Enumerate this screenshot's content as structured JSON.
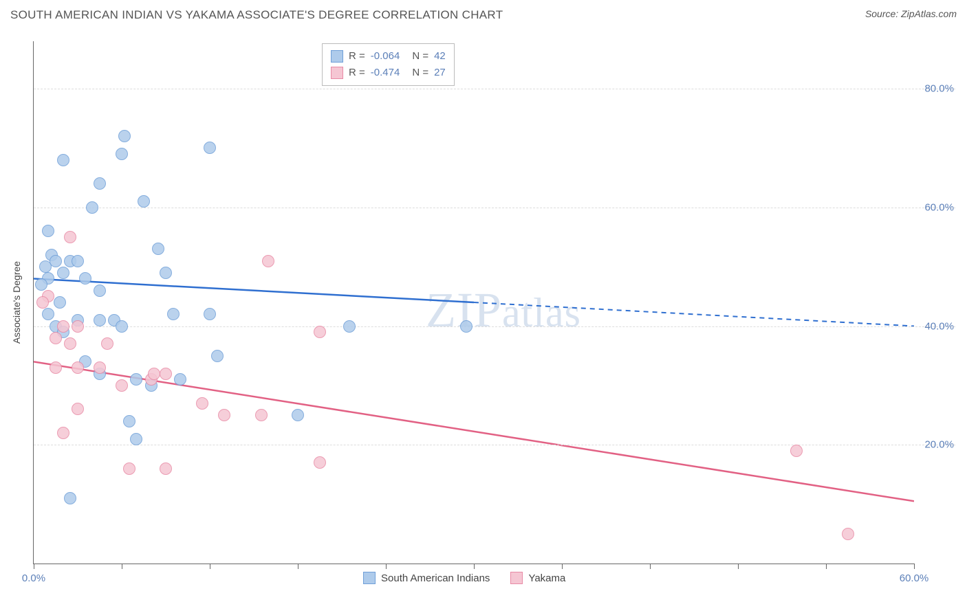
{
  "header": {
    "title": "SOUTH AMERICAN INDIAN VS YAKAMA ASSOCIATE'S DEGREE CORRELATION CHART",
    "source": "Source: ZipAtlas.com"
  },
  "chart": {
    "type": "scatter",
    "ylabel": "Associate's Degree",
    "watermark": "ZIPatlas",
    "background_color": "#ffffff",
    "grid_color": "#dcdcdc",
    "axis_color": "#666666",
    "label_color": "#5b7fb8",
    "text_color": "#555555",
    "xlim": [
      0,
      60
    ],
    "ylim": [
      0,
      88
    ],
    "yticks": [
      {
        "value": 20,
        "label": "20.0%"
      },
      {
        "value": 40,
        "label": "40.0%"
      },
      {
        "value": 60,
        "label": "60.0%"
      },
      {
        "value": 80,
        "label": "80.0%"
      }
    ],
    "xticks": [
      {
        "value": 0,
        "label": "0.0%"
      },
      {
        "value": 6,
        "label": ""
      },
      {
        "value": 12,
        "label": ""
      },
      {
        "value": 18,
        "label": ""
      },
      {
        "value": 24,
        "label": ""
      },
      {
        "value": 30,
        "label": ""
      },
      {
        "value": 36,
        "label": ""
      },
      {
        "value": 42,
        "label": ""
      },
      {
        "value": 48,
        "label": ""
      },
      {
        "value": 54,
        "label": ""
      },
      {
        "value": 60,
        "label": "60.0%"
      }
    ],
    "series": [
      {
        "name": "South American Indians",
        "fill_color": "#aecbeb",
        "stroke_color": "#6f9fd8",
        "line_color": "#2f6fd0",
        "R": "-0.064",
        "N": "42",
        "trend": {
          "x1": 0,
          "y1": 48,
          "x2": 30,
          "y2": 44,
          "dash_to_x": 60,
          "dash_to_y": 40
        },
        "points": [
          [
            2.0,
            68
          ],
          [
            4.5,
            64
          ],
          [
            4.0,
            60
          ],
          [
            6.2,
            72
          ],
          [
            6.0,
            69
          ],
          [
            12.0,
            70
          ],
          [
            1.0,
            56
          ],
          [
            1.2,
            52
          ],
          [
            1.5,
            51
          ],
          [
            2.5,
            51
          ],
          [
            3.0,
            51
          ],
          [
            0.8,
            50
          ],
          [
            1.0,
            48
          ],
          [
            2.0,
            49
          ],
          [
            3.5,
            48
          ],
          [
            4.5,
            46
          ],
          [
            0.5,
            47
          ],
          [
            1.8,
            44
          ],
          [
            3.0,
            41
          ],
          [
            4.5,
            41
          ],
          [
            5.5,
            41
          ],
          [
            8.5,
            53
          ],
          [
            7.5,
            61
          ],
          [
            9.5,
            42
          ],
          [
            12.0,
            42
          ],
          [
            12.5,
            35
          ],
          [
            10.0,
            31
          ],
          [
            8.0,
            30
          ],
          [
            6.5,
            24
          ],
          [
            6.0,
            40
          ],
          [
            9.0,
            49
          ],
          [
            21.5,
            40
          ],
          [
            29.5,
            40
          ],
          [
            18.0,
            25
          ],
          [
            2.5,
            11
          ],
          [
            1.5,
            40
          ],
          [
            2.0,
            39
          ],
          [
            3.5,
            34
          ],
          [
            7.0,
            31
          ],
          [
            7.0,
            21
          ],
          [
            4.5,
            32
          ],
          [
            1.0,
            42
          ]
        ]
      },
      {
        "name": "Yakama",
        "fill_color": "#f5c6d3",
        "stroke_color": "#e88aa5",
        "line_color": "#e26184",
        "R": "-0.474",
        "N": "27",
        "trend": {
          "x1": 0,
          "y1": 34,
          "x2": 60,
          "y2": 10.5,
          "dash_to_x": null,
          "dash_to_y": null
        },
        "points": [
          [
            2.5,
            55
          ],
          [
            1.0,
            45
          ],
          [
            0.6,
            44
          ],
          [
            2.0,
            40
          ],
          [
            3.0,
            40
          ],
          [
            1.5,
            38
          ],
          [
            5.0,
            37
          ],
          [
            2.5,
            37
          ],
          [
            1.5,
            33
          ],
          [
            3.0,
            33
          ],
          [
            4.5,
            33
          ],
          [
            9.0,
            32
          ],
          [
            8.0,
            31
          ],
          [
            8.2,
            32
          ],
          [
            16.0,
            51
          ],
          [
            19.5,
            39
          ],
          [
            3.0,
            26
          ],
          [
            6.0,
            30
          ],
          [
            11.5,
            27
          ],
          [
            13.0,
            25
          ],
          [
            2.0,
            22
          ],
          [
            6.5,
            16
          ],
          [
            9.0,
            16
          ],
          [
            19.5,
            17
          ],
          [
            52.0,
            19
          ],
          [
            55.5,
            5
          ],
          [
            15.5,
            25
          ]
        ]
      }
    ],
    "legend": [
      {
        "label": "South American Indians",
        "fill": "#aecbeb",
        "stroke": "#6f9fd8"
      },
      {
        "label": "Yakama",
        "fill": "#f5c6d3",
        "stroke": "#e88aa5"
      }
    ]
  }
}
